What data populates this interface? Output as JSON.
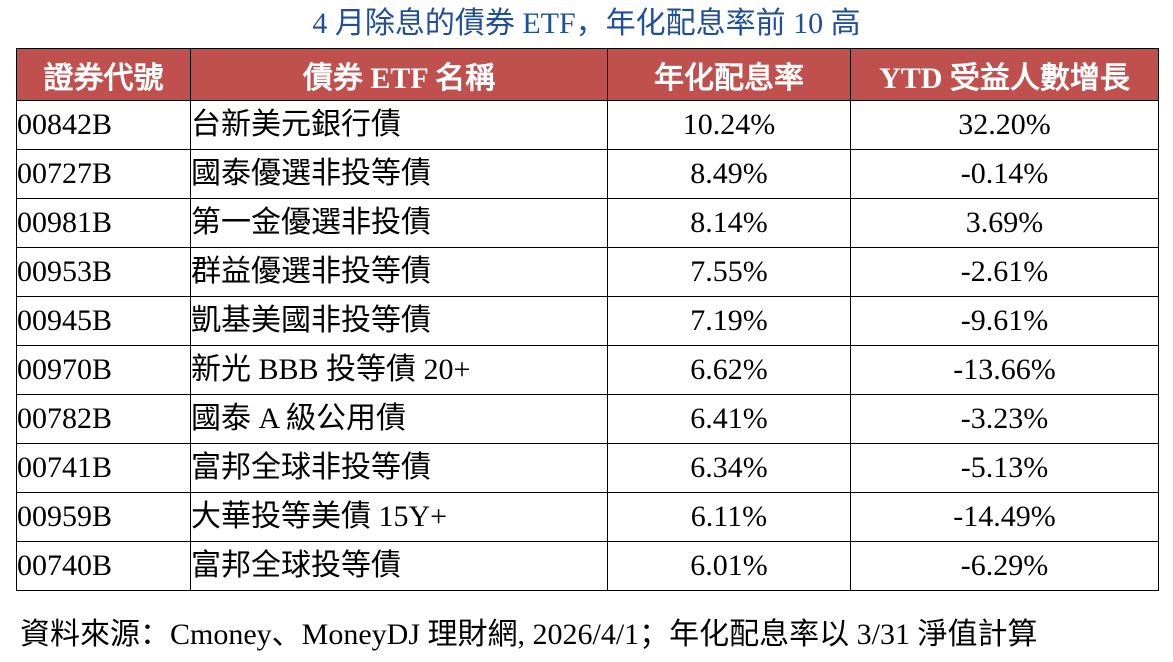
{
  "title": "4 月除息的債券 ETF，年化配息率前 10 高",
  "table": {
    "headers": [
      "證券代號",
      "債券 ETF 名稱",
      "年化配息率",
      "YTD 受益人數增長"
    ],
    "rows": [
      [
        "00842B",
        "台新美元銀行債",
        "10.24%",
        "32.20%"
      ],
      [
        "00727B",
        "國泰優選非投等債",
        "8.49%",
        "-0.14%"
      ],
      [
        "00981B",
        "第一金優選非投債",
        "8.14%",
        "3.69%"
      ],
      [
        "00953B",
        "群益優選非投等債",
        "7.55%",
        "-2.61%"
      ],
      [
        "00945B",
        "凱基美國非投等債",
        "7.19%",
        "-9.61%"
      ],
      [
        "00970B",
        "新光 BBB 投等債 20+",
        "6.62%",
        "-13.66%"
      ],
      [
        "00782B",
        "國泰 A 級公用債",
        "6.41%",
        "-3.23%"
      ],
      [
        "00741B",
        "富邦全球非投等債",
        "6.34%",
        "-5.13%"
      ],
      [
        "00959B",
        "大華投等美債 15Y+",
        "6.11%",
        "-14.49%"
      ],
      [
        "00740B",
        "富邦全球投等債",
        "6.01%",
        "-6.29%"
      ]
    ]
  },
  "footer": "資料來源：Cmoney、MoneyDJ 理財網, 2026/4/1；年化配息率以 3/31 淨值計算",
  "colors": {
    "title": "#1f4e9a",
    "header_background": "#c0504d",
    "header_text": "#ffffff",
    "border": "#000000"
  }
}
